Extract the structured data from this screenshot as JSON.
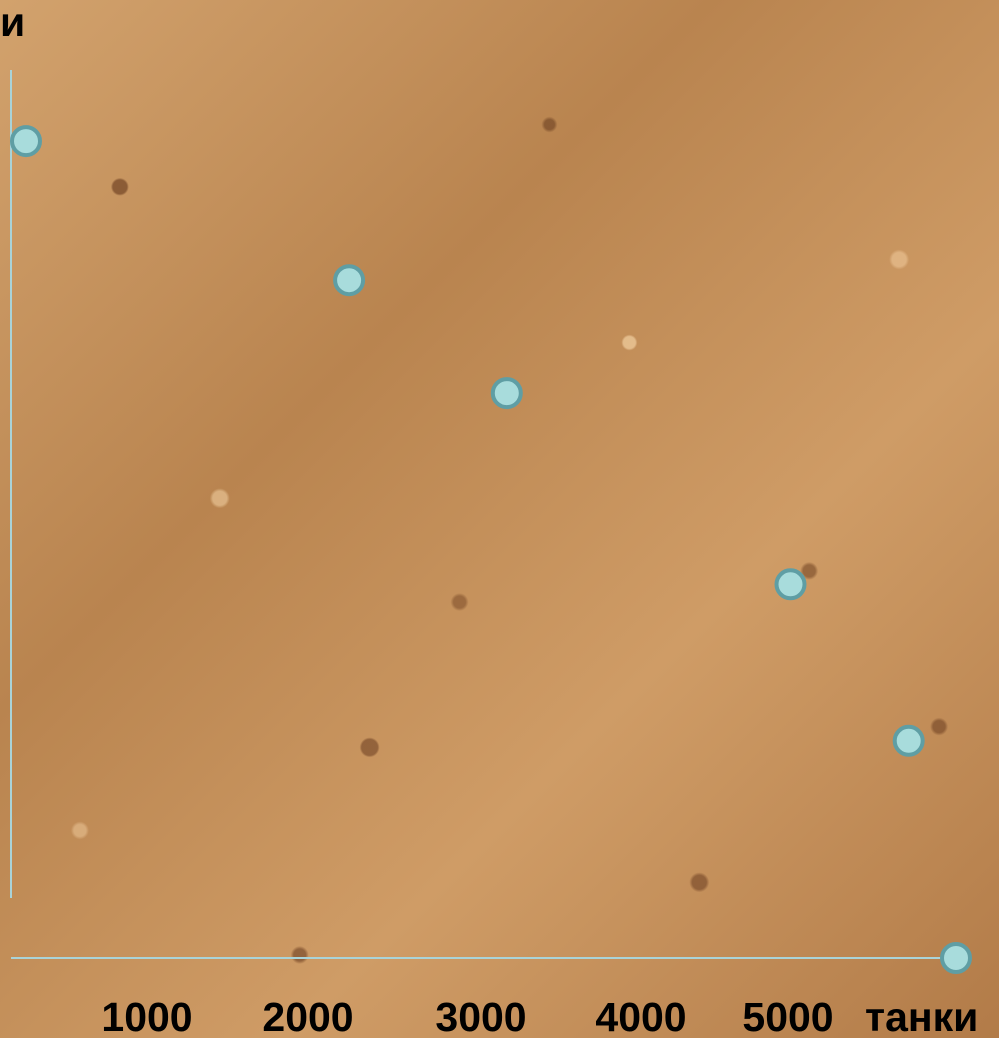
{
  "chart_data": {
    "type": "scatter",
    "ylabel": "и",
    "xlabel": "танки",
    "x_ticks": [
      {
        "value": 1000,
        "label": "1000"
      },
      {
        "value": 2000,
        "label": "2000"
      },
      {
        "value": 3000,
        "label": "3000"
      },
      {
        "value": 4000,
        "label": "4000"
      },
      {
        "value": 5000,
        "label": "5000"
      }
    ],
    "xlim": [
      0,
      5900
    ],
    "ylim": [
      0,
      5
    ],
    "points": [
      {
        "x": 0,
        "y": 4.7
      },
      {
        "x": 2050,
        "y": 3.9
      },
      {
        "x": 3050,
        "y": 3.25
      },
      {
        "x": 4850,
        "y": 2.15
      },
      {
        "x": 5600,
        "y": 1.25
      },
      {
        "x": 5950,
        "y": 0
      }
    ],
    "colors": {
      "point_fill": "#a8dcdc",
      "point_stroke": "#5f9ea4",
      "axis": "#a9d3d8",
      "label": "#000000"
    }
  }
}
